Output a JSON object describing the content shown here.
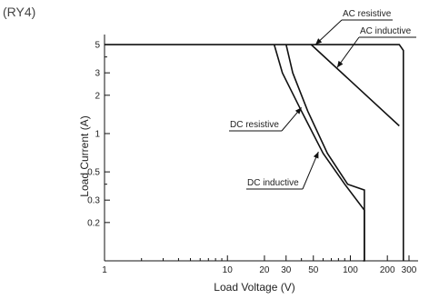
{
  "chart_data": {
    "type": "line",
    "corner_label": "(RY4)",
    "xlabel": "Load Voltage (V)",
    "ylabel": "Load Current (A)",
    "xscale": "log",
    "yscale": "log",
    "xlim": [
      1,
      300
    ],
    "ylim": [
      0.1,
      6
    ],
    "grid": false,
    "x_ticks": [
      {
        "value": 1,
        "label": "1"
      },
      {
        "value": 10,
        "label": "10"
      },
      {
        "value": 20,
        "label": "20"
      },
      {
        "value": 30,
        "label": "30"
      },
      {
        "value": 50,
        "label": "50"
      },
      {
        "value": 100,
        "label": "100"
      },
      {
        "value": 200,
        "label": "200"
      },
      {
        "value": 300,
        "label": "300"
      }
    ],
    "x_minor_ticks": [
      2,
      3,
      4,
      5,
      6,
      7,
      8,
      9,
      40,
      60,
      70,
      80,
      90
    ],
    "y_ticks": [
      {
        "value": 0.2,
        "label": "0.2"
      },
      {
        "value": 0.3,
        "label": "0.3"
      },
      {
        "value": 0.5,
        "label": "0.5"
      },
      {
        "value": 1,
        "label": "1"
      },
      {
        "value": 2,
        "label": "2"
      },
      {
        "value": 3,
        "label": "3"
      },
      {
        "value": 5,
        "label": "5"
      }
    ],
    "y_minor_ticks": [
      4,
      0.4
    ],
    "series": [
      {
        "name": "AC resistive",
        "x": [
          1,
          250,
          270,
          270
        ],
        "y": [
          5,
          5,
          4.5,
          0.1
        ]
      },
      {
        "name": "AC inductive",
        "x": [
          48,
          250
        ],
        "y": [
          5,
          1.15
        ]
      },
      {
        "name": "DC resistive",
        "x": [
          24,
          28,
          40,
          60,
          90,
          130,
          130
        ],
        "y": [
          5,
          3,
          1.5,
          0.7,
          0.4,
          0.25,
          0.1
        ]
      },
      {
        "name": "DC inductive",
        "x": [
          30,
          34,
          45,
          65,
          95,
          130,
          130,
          127
        ],
        "y": [
          5,
          3,
          1.5,
          0.7,
          0.4,
          0.36,
          0.1,
          0.1
        ]
      }
    ],
    "annotations": [
      {
        "text": "AC resistive",
        "series": "AC resistive",
        "arrow_to": [
          52,
          5
        ]
      },
      {
        "text": "AC inductive",
        "series": "AC inductive",
        "arrow_to": [
          78,
          3.3
        ]
      },
      {
        "text": "DC resistive",
        "series": "DC resistive",
        "arrow_to": [
          40,
          1.6
        ]
      },
      {
        "text": "DC inductive",
        "series": "DC inductive",
        "arrow_to": [
          55,
          0.72
        ]
      }
    ]
  }
}
